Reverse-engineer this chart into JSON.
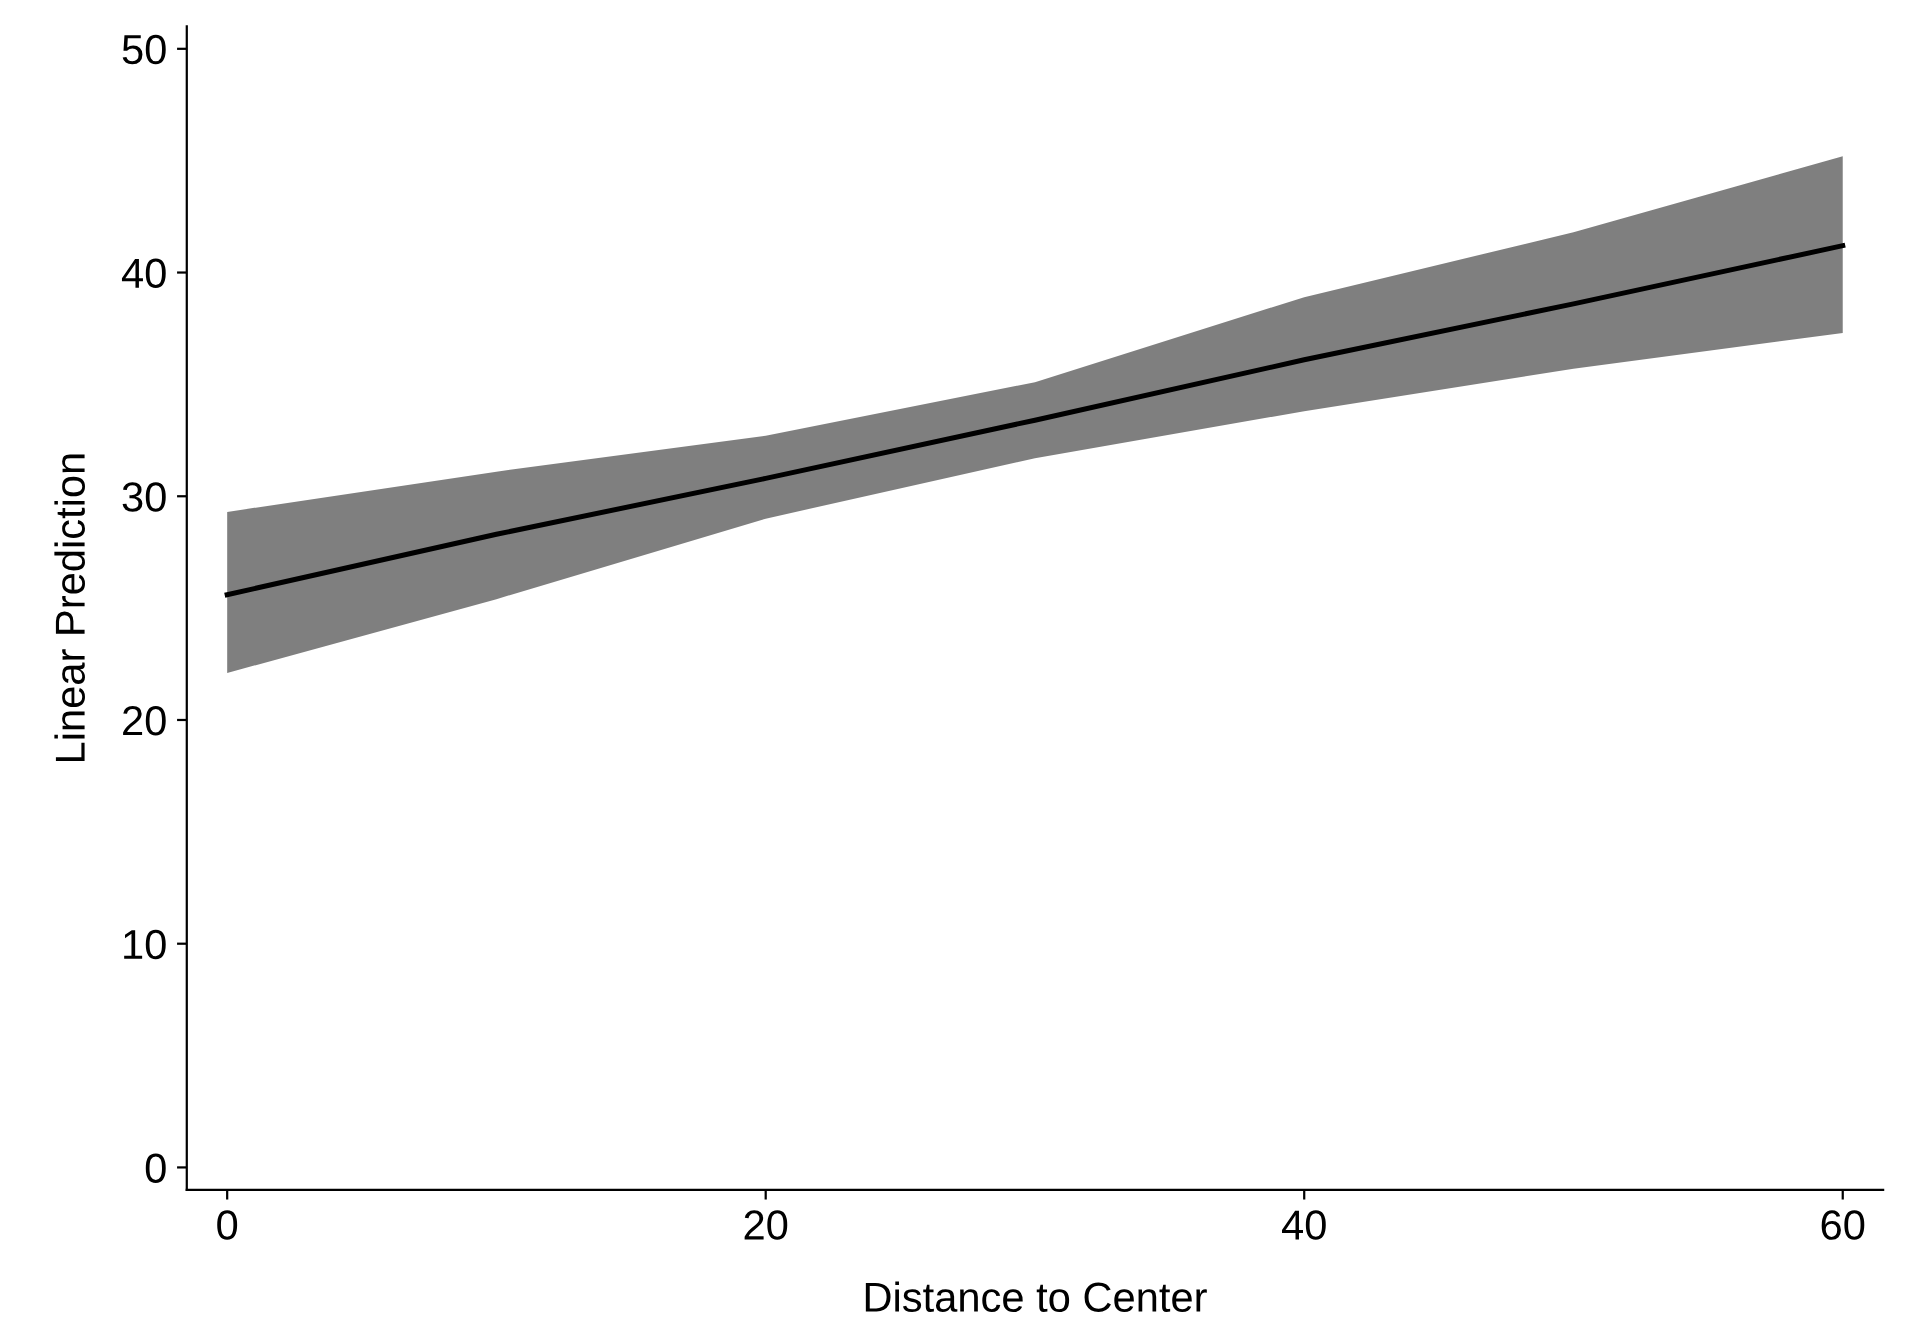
{
  "chart_data": {
    "type": "line",
    "xlabel": "Distance to Center",
    "ylabel": "Linear Prediction",
    "series": [
      {
        "color": "#000000",
        "x": [
          0,
          10,
          20,
          30,
          40,
          50,
          60
        ],
        "values": [
          25.6,
          28.3,
          30.8,
          33.4,
          36.1,
          38.6,
          41.2
        ],
        "lower": [
          22.1,
          25.4,
          29.0,
          31.7,
          33.8,
          35.7,
          37.3
        ],
        "upper": [
          29.3,
          31.1,
          32.7,
          35.1,
          38.9,
          41.8,
          45.2
        ]
      }
    ],
    "xlim": [
      -1.5,
      61.5
    ],
    "ylim": [
      -1,
      51
    ],
    "xticks": [
      0,
      20,
      40,
      60
    ],
    "yticks": [
      0,
      10,
      20,
      30,
      40,
      50
    ],
    "grid": false,
    "legend": false
  }
}
